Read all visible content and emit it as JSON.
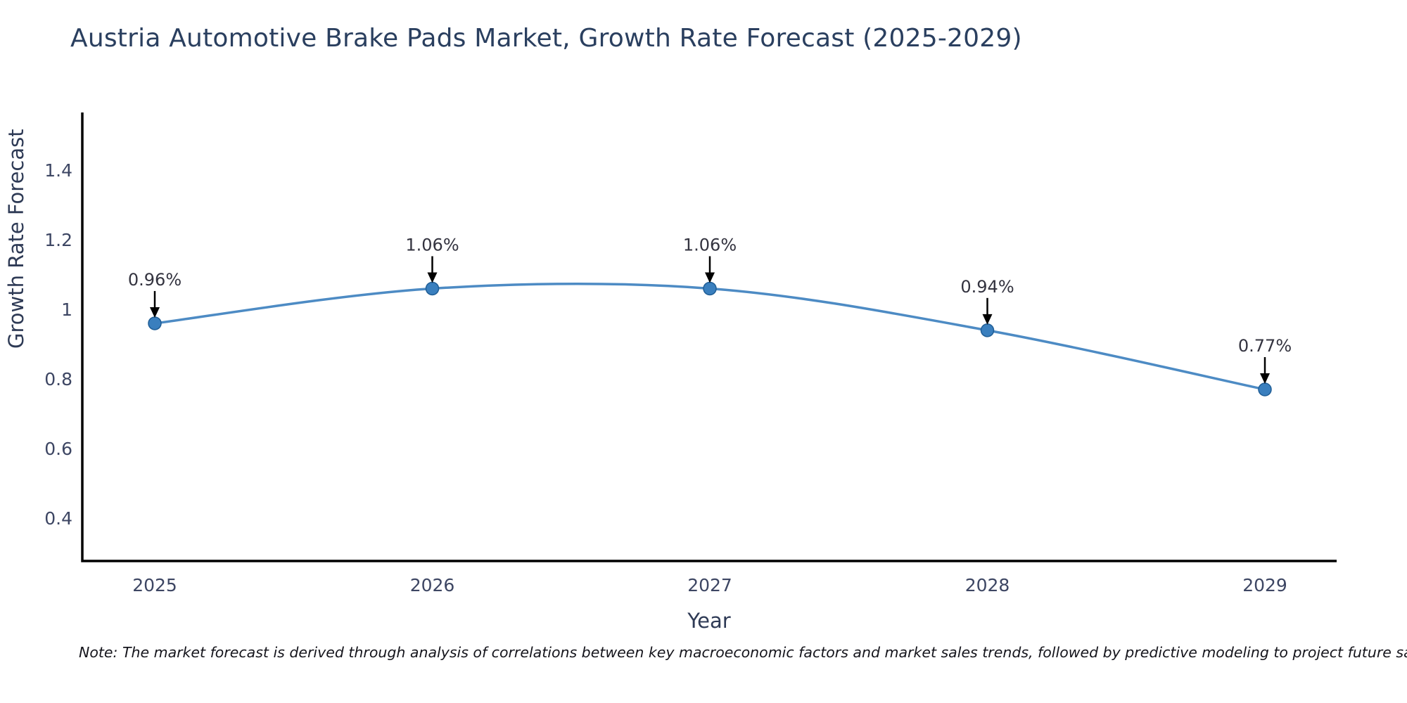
{
  "title": "Austria Automotive Brake Pads Market, Growth Rate Forecast (2025-2029)",
  "note": "Note: The market forecast is derived through analysis of correlations between key macroeconomic factors and market sales trends, followed by predictive modeling to project future sales",
  "chart_data": {
    "type": "line",
    "title": "Austria Automotive Brake Pads Market, Growth Rate Forecast (2025-2029)",
    "xlabel": "Year",
    "ylabel": "Growth Rate Forecast",
    "x": [
      2025,
      2026,
      2027,
      2028,
      2029
    ],
    "x_tick_labels": [
      "2025",
      "2026",
      "2027",
      "2028",
      "2029"
    ],
    "values": [
      0.96,
      1.06,
      1.06,
      0.94,
      0.77
    ],
    "point_labels": [
      "0.96%",
      "1.06%",
      "1.06%",
      "0.94%",
      "0.77%"
    ],
    "y_ticks": [
      0.4,
      0.6,
      0.8,
      1.0,
      1.2,
      1.4
    ],
    "y_tick_labels": [
      "0.4",
      "0.6",
      "0.8",
      "1",
      "1.2",
      "1.4"
    ],
    "ylim": [
      0.277,
      1.566
    ],
    "grid": false,
    "legend": "none",
    "line_shape": "spline",
    "colors": {
      "line": "#4d8bc4",
      "marker": "#3a7fbe",
      "marker_edge": "#205e96",
      "axis": "#000000",
      "tick_text": "#3d4663",
      "title_text": "#2a3f5f",
      "annotation_text": "#33333f",
      "arrow": "#000000"
    }
  }
}
